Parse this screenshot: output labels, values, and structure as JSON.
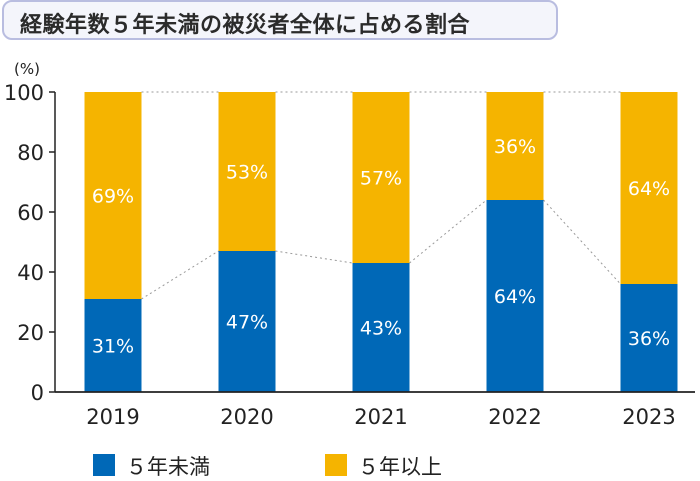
{
  "title": "経験年数５年未満の被災者全体に占める割合",
  "colors": {
    "under5": "#0068b7",
    "over5": "#f5b400",
    "axis": "#222222",
    "connector": "#999999"
  },
  "chart_data": {
    "type": "bar",
    "stacked": true,
    "percent": true,
    "categories": [
      "2019",
      "2020",
      "2021",
      "2022",
      "2023"
    ],
    "series": [
      {
        "name": "５年未満",
        "values": [
          31,
          47,
          43,
          64,
          36
        ],
        "labels": [
          "31%",
          "47%",
          "43%",
          "64%",
          "36%"
        ]
      },
      {
        "name": "５年以上",
        "values": [
          69,
          53,
          57,
          36,
          64
        ],
        "labels": [
          "69%",
          "53%",
          "57%",
          "36%",
          "64%"
        ]
      }
    ],
    "ylabel": "(%)",
    "ylim": [
      0,
      100
    ],
    "yticks": [
      "0",
      "20",
      "40",
      "60",
      "80",
      "100"
    ],
    "grid": false,
    "connector_lines": true,
    "legend_position": "bottom"
  }
}
